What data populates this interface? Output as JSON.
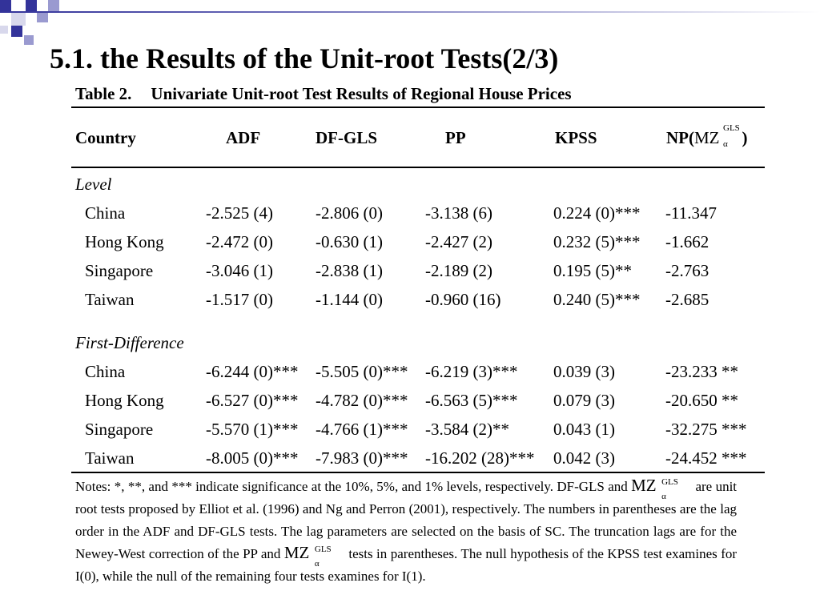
{
  "slide": {
    "title": "5.1. the Results of the Unit-root Tests(2/3)",
    "accent_color": "#33339a",
    "accent_light": "#9a9ad0"
  },
  "table": {
    "caption_number": "Table 2.",
    "caption_text": "Univariate Unit-root Test Results of Regional House Prices",
    "headers": {
      "country": "Country",
      "adf": "ADF",
      "dfgls": "DF-GLS",
      "pp": "PP",
      "kpss": "KPSS",
      "np_prefix": "NP(",
      "np_mz": "MZ",
      "np_sup": "GLS",
      "np_sub": "α",
      "np_suffix": ")"
    },
    "level": {
      "label": "Level",
      "rows": [
        {
          "country": "China",
          "adf": "-2.525 (4)",
          "dfgls": "-2.806 (0)",
          "pp": "-3.138 (6)",
          "kpss": "0.224 (0)***",
          "np": "-11.347"
        },
        {
          "country": "Hong Kong",
          "adf": "-2.472 (0)",
          "dfgls": "-0.630 (1)",
          "pp": "-2.427 (2)",
          "kpss": "0.232 (5)***",
          "np": "-1.662"
        },
        {
          "country": "Singapore",
          "adf": "-3.046 (1)",
          "dfgls": "-2.838 (1)",
          "pp": "-2.189 (2)",
          "kpss": "0.195 (5)**",
          "np": "-2.763"
        },
        {
          "country": "Taiwan",
          "adf": "-1.517 (0)",
          "dfgls": "-1.144 (0)",
          "pp": "-0.960 (16)",
          "kpss": "0.240 (5)***",
          "np": "-2.685"
        }
      ]
    },
    "first_difference": {
      "label": "First-Difference",
      "rows": [
        {
          "country": "China",
          "adf": "-6.244 (0)***",
          "dfgls": "-5.505 (0)***",
          "pp": "-6.219 (3)***",
          "kpss": "0.039 (3)",
          "np": "-23.233 **"
        },
        {
          "country": "Hong Kong",
          "adf": "-6.527 (0)***",
          "dfgls": "-4.782 (0)***",
          "pp": "-6.563 (5)***",
          "kpss": "0.079 (3)",
          "np": "-20.650 **"
        },
        {
          "country": "Singapore",
          "adf": "-5.570 (1)***",
          "dfgls": "-4.766 (1)***",
          "pp": "-3.584 (2)**",
          "kpss": "0.043 (1)",
          "np": "-32.275 ***"
        },
        {
          "country": "Taiwan",
          "adf": "-8.005 (0)***",
          "dfgls": "-7.983 (0)***",
          "pp": "-16.202 (28)***",
          "kpss": "0.042 (3)",
          "np": "-24.452 ***"
        }
      ]
    },
    "notes": {
      "part1": "Notes: *, **, and *** indicate significance at the 10%, 5%, and 1% levels, respectively. DF-GLS and",
      "part2": "are unit root tests proposed by Elliot et al. (1996) and Ng and Perron (2001), respectively. The numbers in parentheses are the lag order in the ADF and DF-GLS tests. The lag parameters are selected on the basis of SC. The truncation lags are for the Newey-West correction of the PP and",
      "part3": "tests in parentheses. The null hypothesis of the KPSS test examines for I(0), while the null of the remaining four tests examines for I(1).",
      "mz": "MZ",
      "mz_sup": "GLS",
      "mz_sub": "α"
    }
  }
}
